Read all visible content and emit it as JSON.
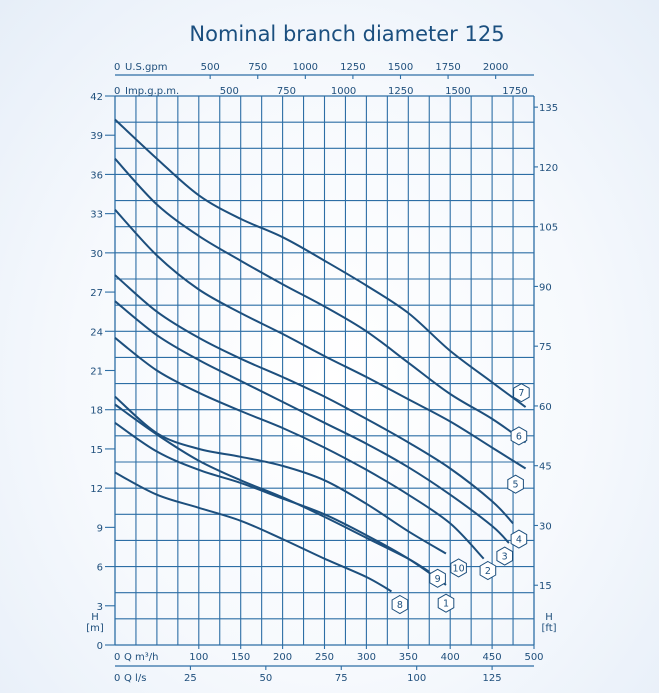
{
  "chart_data": {
    "type": "line",
    "title": "Nominal branch diameter 125",
    "x_axis": {
      "label": "Q m³/h",
      "range": [
        0,
        500
      ],
      "ticks": [
        100,
        150,
        200,
        250,
        300,
        350,
        400,
        450,
        500
      ],
      "zero_label": "0"
    },
    "x_axis_ls": {
      "label": "Q l/s",
      "zero_label": "0",
      "ticks": [
        25,
        50,
        75,
        100,
        125
      ]
    },
    "x_axis_usgpm": {
      "label": "U.S.gpm",
      "zero_label": "0",
      "ticks": [
        500,
        750,
        1000,
        1250,
        1500,
        1750,
        2000
      ]
    },
    "x_axis_impgpm": {
      "label": "Imp.g.p.m.",
      "zero_label": "0",
      "ticks": [
        500,
        750,
        1000,
        1250,
        1500,
        1750
      ]
    },
    "y_axis": {
      "label_top": "H",
      "label_bottom": "[m]",
      "range": [
        0,
        42
      ],
      "ticks": [
        0,
        3,
        6,
        9,
        12,
        15,
        18,
        21,
        24,
        27,
        30,
        33,
        36,
        39,
        42
      ]
    },
    "y_axis_ft": {
      "label_top": "H",
      "label_bottom": "[ft]",
      "ticks": [
        15,
        30,
        45,
        60,
        75,
        90,
        105,
        120,
        135
      ]
    },
    "grid": true,
    "series": [
      {
        "name": "1",
        "x": [
          0,
          50,
          100,
          150,
          200,
          250,
          300,
          350,
          395
        ],
        "y": [
          17,
          14.8,
          13.4,
          12.4,
          11.2,
          10,
          8.4,
          6.6,
          4.6
        ]
      },
      {
        "name": "2",
        "x": [
          0,
          50,
          100,
          150,
          200,
          250,
          300,
          350,
          400,
          440
        ],
        "y": [
          23.5,
          21,
          19.3,
          17.9,
          16.6,
          15.1,
          13.4,
          11.5,
          9.3,
          6.6
        ]
      },
      {
        "name": "3",
        "x": [
          0,
          50,
          100,
          150,
          200,
          250,
          300,
          350,
          400,
          450,
          470
        ],
        "y": [
          26.3,
          23.7,
          21.8,
          20.2,
          18.6,
          17,
          15.4,
          13.6,
          11.5,
          9.1,
          7.8
        ]
      },
      {
        "name": "4",
        "x": [
          0,
          50,
          100,
          150,
          200,
          250,
          300,
          350,
          400,
          450,
          475
        ],
        "y": [
          28.3,
          25.5,
          23.5,
          21.9,
          20.5,
          19,
          17.3,
          15.5,
          13.5,
          11,
          9.3
        ]
      },
      {
        "name": "5",
        "x": [
          0,
          50,
          100,
          150,
          200,
          250,
          300,
          350,
          400,
          450,
          490
        ],
        "y": [
          33.3,
          29.8,
          27.2,
          25.4,
          23.8,
          22.1,
          20.5,
          18.8,
          17.1,
          15.1,
          13.5
        ]
      },
      {
        "name": "6",
        "x": [
          0,
          50,
          100,
          150,
          200,
          250,
          300,
          350,
          400,
          450,
          490
        ],
        "y": [
          37.2,
          33.7,
          31.3,
          29.4,
          27.6,
          25.9,
          24,
          21.6,
          19.2,
          17.3,
          15.5
        ]
      },
      {
        "name": "7",
        "x": [
          0,
          50,
          100,
          150,
          200,
          250,
          300,
          350,
          400,
          450,
          490
        ],
        "y": [
          40.2,
          37.2,
          34.4,
          32.6,
          31.2,
          29.4,
          27.5,
          25.4,
          22.5,
          20.1,
          18.2
        ]
      },
      {
        "name": "8",
        "x": [
          0,
          50,
          100,
          150,
          200,
          250,
          300,
          330
        ],
        "y": [
          13.2,
          11.5,
          10.5,
          9.5,
          8.1,
          6.6,
          5.2,
          4.1
        ]
      },
      {
        "name": "9",
        "x": [
          0,
          50,
          100,
          150,
          200,
          250,
          300,
          350,
          375
        ],
        "y": [
          18.4,
          16.1,
          14.1,
          12.6,
          11.3,
          9.8,
          8.2,
          6.6,
          5.6
        ]
      },
      {
        "name": "10",
        "x": [
          0,
          50,
          100,
          150,
          200,
          250,
          300,
          350,
          395
        ],
        "y": [
          19,
          16.2,
          15,
          14.4,
          13.7,
          12.6,
          10.8,
          8.7,
          7
        ]
      }
    ],
    "series_label_positions": [
      {
        "name": "1",
        "x": 395,
        "y": 3.2
      },
      {
        "name": "2",
        "x": 445,
        "y": 5.7
      },
      {
        "name": "3",
        "x": 465,
        "y": 6.8
      },
      {
        "name": "4",
        "x": 482,
        "y": 8.1
      },
      {
        "name": "5",
        "x": 478,
        "y": 12.3
      },
      {
        "name": "6",
        "x": 482,
        "y": 16
      },
      {
        "name": "7",
        "x": 485,
        "y": 19.3
      },
      {
        "name": "8",
        "x": 340,
        "y": 3.1
      },
      {
        "name": "9",
        "x": 385,
        "y": 5.1
      },
      {
        "name": "10",
        "x": 410,
        "y": 5.9
      }
    ]
  }
}
